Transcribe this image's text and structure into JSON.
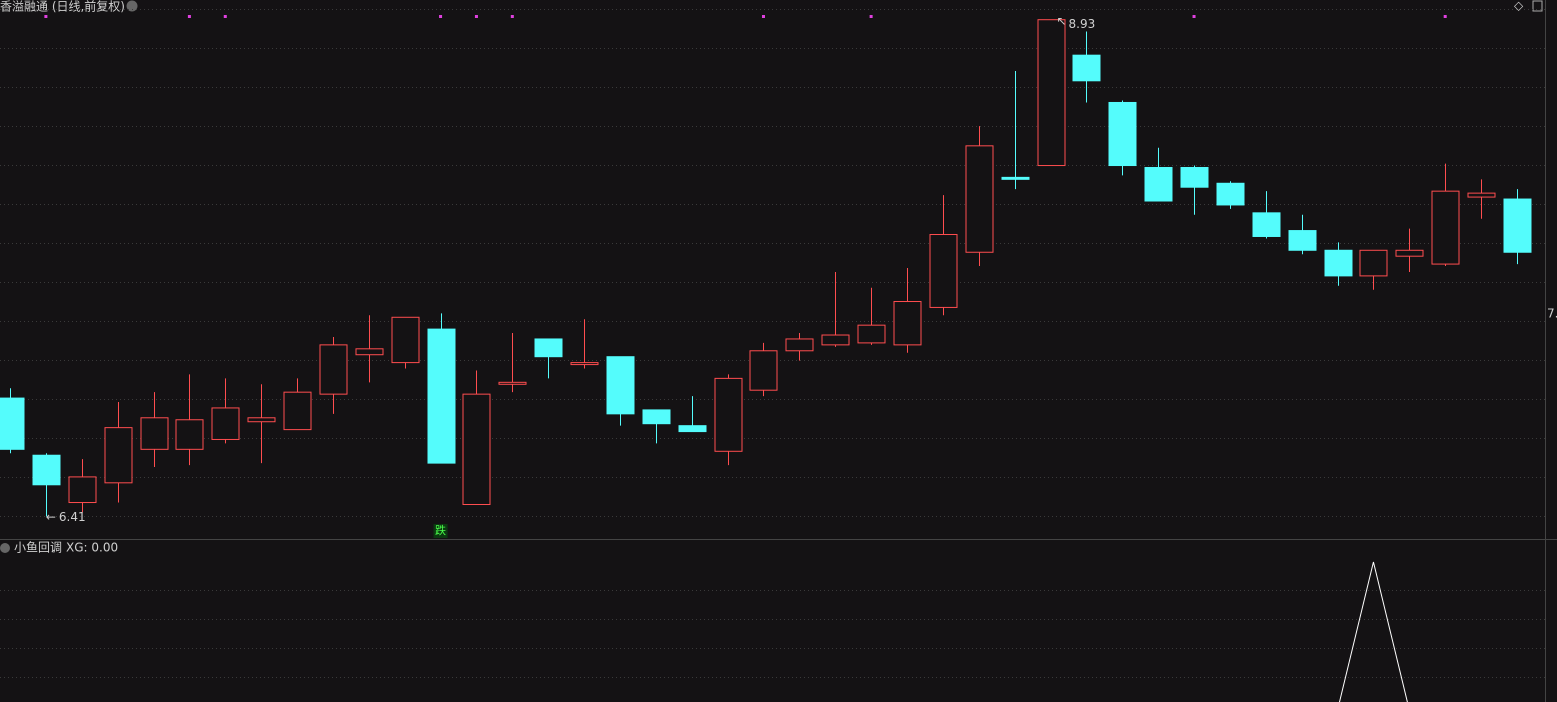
{
  "ui": {
    "title": "香溢融通 (日线,前复权)",
    "price_label": "7.",
    "indicator_title": "小鱼回调",
    "indicator_value_label": "XG: 0.00"
  },
  "chart_data": {
    "type": "candlestick",
    "up_color": "#ff4d4f",
    "down_color": "#54fcfc",
    "signal_color": "#e040e0",
    "ylim": [
      6.3,
      9.03
    ],
    "open": [
      7.01,
      6.72,
      6.48,
      6.58,
      6.75,
      6.75,
      6.8,
      6.89,
      6.85,
      7.03,
      7.23,
      7.19,
      7.36,
      6.47,
      7.08,
      7.31,
      7.18,
      7.22,
      6.95,
      6.87,
      6.74,
      7.05,
      7.25,
      7.28,
      7.29,
      7.28,
      7.47,
      7.75,
      8.13,
      8.19,
      8.75,
      8.51,
      8.18,
      8.18,
      8.1,
      7.95,
      7.86,
      7.76,
      7.63,
      7.73,
      7.69,
      8.03,
      8.02
    ],
    "high": [
      7.06,
      6.73,
      6.7,
      6.99,
      7.04,
      7.13,
      7.11,
      7.08,
      7.11,
      7.32,
      7.43,
      7.42,
      7.44,
      7.15,
      7.34,
      7.31,
      7.41,
      7.22,
      6.95,
      7.02,
      7.13,
      7.29,
      7.34,
      7.65,
      7.57,
      7.67,
      8.04,
      8.39,
      8.67,
      8.93,
      8.87,
      8.52,
      8.28,
      8.19,
      8.11,
      8.06,
      7.94,
      7.8,
      7.76,
      7.87,
      8.2,
      8.12,
      8.07
    ],
    "low": [
      6.73,
      6.41,
      6.43,
      6.48,
      6.66,
      6.67,
      6.78,
      6.68,
      6.85,
      6.93,
      7.09,
      7.16,
      6.68,
      6.47,
      7.04,
      7.11,
      7.16,
      6.87,
      6.78,
      6.84,
      6.67,
      7.02,
      7.2,
      7.27,
      7.28,
      7.24,
      7.43,
      7.68,
      8.07,
      8.19,
      8.51,
      8.14,
      8.01,
      7.94,
      7.97,
      7.82,
      7.74,
      7.58,
      7.56,
      7.65,
      7.68,
      7.92,
      7.69
    ],
    "close": [
      6.75,
      6.57,
      6.61,
      6.86,
      6.91,
      6.9,
      6.96,
      6.91,
      7.04,
      7.28,
      7.26,
      7.42,
      6.68,
      7.03,
      7.09,
      7.22,
      7.19,
      6.93,
      6.88,
      6.84,
      7.11,
      7.25,
      7.31,
      7.33,
      7.38,
      7.5,
      7.84,
      8.29,
      8.12,
      8.93,
      8.62,
      8.19,
      8.01,
      8.08,
      7.99,
      7.83,
      7.76,
      7.63,
      7.76,
      7.76,
      8.06,
      8.05,
      7.75
    ],
    "signals": [
      1,
      5,
      6,
      12,
      13,
      14,
      21,
      24,
      33,
      40
    ],
    "annotations": [
      {
        "text": "跌",
        "index": 12
      }
    ],
    "high_label_index": 29,
    "low_label_index": 1,
    "indicator": {
      "name": "XG",
      "values": [
        0,
        0,
        0,
        0,
        0,
        0,
        0,
        0,
        0,
        0,
        0,
        0,
        0,
        0,
        0,
        0,
        0,
        0,
        0,
        0,
        0,
        0,
        0,
        0,
        0,
        0,
        0,
        0,
        0,
        0,
        0,
        0,
        0,
        0,
        0,
        0,
        0,
        0,
        1,
        0,
        0,
        0,
        0
      ]
    }
  }
}
